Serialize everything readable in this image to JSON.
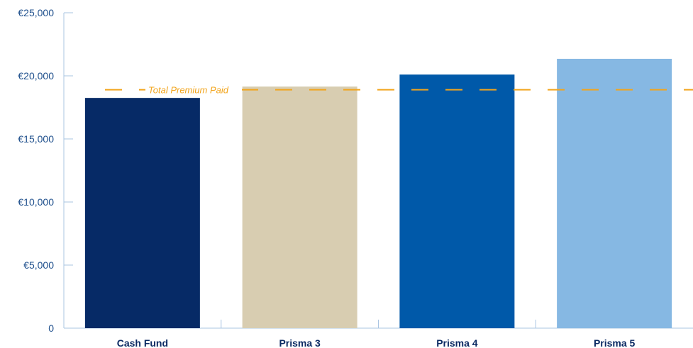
{
  "chart_data": {
    "type": "bar",
    "categories": [
      "Cash Fund",
      "Prisma 3",
      "Prisma 4",
      "Prisma 5"
    ],
    "values": [
      18250,
      19150,
      20100,
      21350
    ],
    "bar_colors": [
      "#062a66",
      "#d8cdb1",
      "#0059a9",
      "#86b8e3"
    ],
    "ylim": [
      0,
      25000
    ],
    "yticks": [
      0,
      5000,
      10000,
      15000,
      20000,
      25000
    ],
    "ytick_labels": [
      "0",
      "€5,000",
      "€10,000",
      "€15,000",
      "€20,000",
      "€25,000"
    ],
    "reference_line": {
      "label": "Total Premium Paid",
      "value": 18900,
      "color": "#f2a51d"
    },
    "axis_color": "#a9c4e2",
    "grid": false,
    "title": "",
    "xlabel": "",
    "ylabel": ""
  }
}
